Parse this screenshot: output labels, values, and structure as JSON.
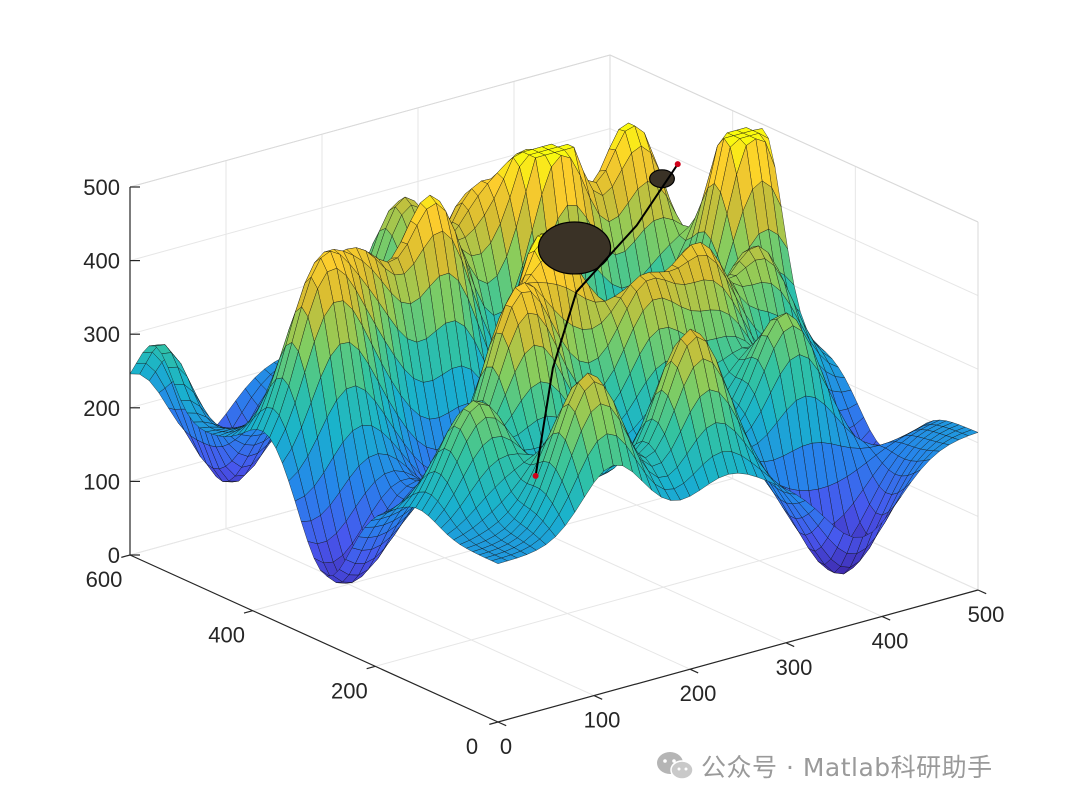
{
  "chart_data": {
    "type": "surface",
    "title": "",
    "xlabel": "",
    "ylabel": "",
    "zlabel": "",
    "xlim": [
      0,
      500
    ],
    "ylim": [
      0,
      600
    ],
    "zlim": [
      0,
      500
    ],
    "x_ticks": [
      0,
      100,
      200,
      300,
      400,
      500
    ],
    "y_ticks": [
      0,
      200,
      400,
      600
    ],
    "z_ticks": [
      0,
      100,
      200,
      300,
      400,
      500
    ],
    "x_tick_labels": [
      "0",
      "100",
      "200",
      "300",
      "400",
      "500"
    ],
    "y_tick_labels": [
      "0",
      "200",
      "400",
      "600"
    ],
    "z_tick_labels": [
      "0",
      "100",
      "200",
      "300",
      "400",
      "500"
    ],
    "grid": true,
    "colormap": "parula",
    "colors": {
      "low": "#3e26a8",
      "mid": "#2ab0c9",
      "high": "#f9fb0e"
    },
    "surface": {
      "base_height": 215,
      "peaks": [
        {
          "x": 480,
          "y": 350,
          "z": 340
        },
        {
          "x": 420,
          "y": 440,
          "z": 280
        },
        {
          "x": 330,
          "y": 430,
          "z": 320
        },
        {
          "x": 270,
          "y": 470,
          "z": 200
        },
        {
          "x": 200,
          "y": 420,
          "z": 260
        },
        {
          "x": 120,
          "y": 410,
          "z": 200
        },
        {
          "x": 60,
          "y": 380,
          "z": 230
        },
        {
          "x": 260,
          "y": 560,
          "z": 190
        },
        {
          "x": 210,
          "y": 250,
          "z": 290
        },
        {
          "x": 150,
          "y": 200,
          "z": 230
        },
        {
          "x": 280,
          "y": 200,
          "z": 190
        },
        {
          "x": 120,
          "y": 40,
          "z": 200
        },
        {
          "x": 240,
          "y": 60,
          "z": 210
        },
        {
          "x": 380,
          "y": 120,
          "z": 180
        },
        {
          "x": 350,
          "y": 220,
          "z": 210
        },
        {
          "x": 60,
          "y": 130,
          "z": 150
        },
        {
          "x": 430,
          "y": 250,
          "z": 180
        },
        {
          "x": 20,
          "y": 560,
          "z": 170
        }
      ],
      "valleys": [
        {
          "x": 60,
          "y": 560,
          "z": 180
        },
        {
          "x": 380,
          "y": 40,
          "z": 170
        },
        {
          "x": 280,
          "y": 340,
          "z": 140
        },
        {
          "x": 20,
          "y": 280,
          "z": 140
        },
        {
          "x": 440,
          "y": 560,
          "z": 120
        },
        {
          "x": 470,
          "y": 150,
          "z": 110
        },
        {
          "x": 160,
          "y": 320,
          "z": 90
        }
      ]
    },
    "obstacles": [
      {
        "type": "sphere",
        "x": 380,
        "y": 470,
        "z": 330,
        "r": 35
      },
      {
        "type": "sphere",
        "x": 420,
        "y": 390,
        "z": 440,
        "r": 12
      }
    ],
    "path_points": [
      {
        "x": 250,
        "y": 330,
        "z": 120
      },
      {
        "x": 300,
        "y": 380,
        "z": 230
      },
      {
        "x": 350,
        "y": 420,
        "z": 300
      },
      {
        "x": 400,
        "y": 400,
        "z": 380
      },
      {
        "x": 430,
        "y": 380,
        "z": 460
      }
    ],
    "path_endpoints": [
      {
        "x": 250,
        "y": 330,
        "z": 120
      },
      {
        "x": 430,
        "y": 380,
        "z": 460
      }
    ]
  },
  "watermark": {
    "text": "公众号 · Matlab科研助手",
    "icon": "wechat-icon"
  }
}
